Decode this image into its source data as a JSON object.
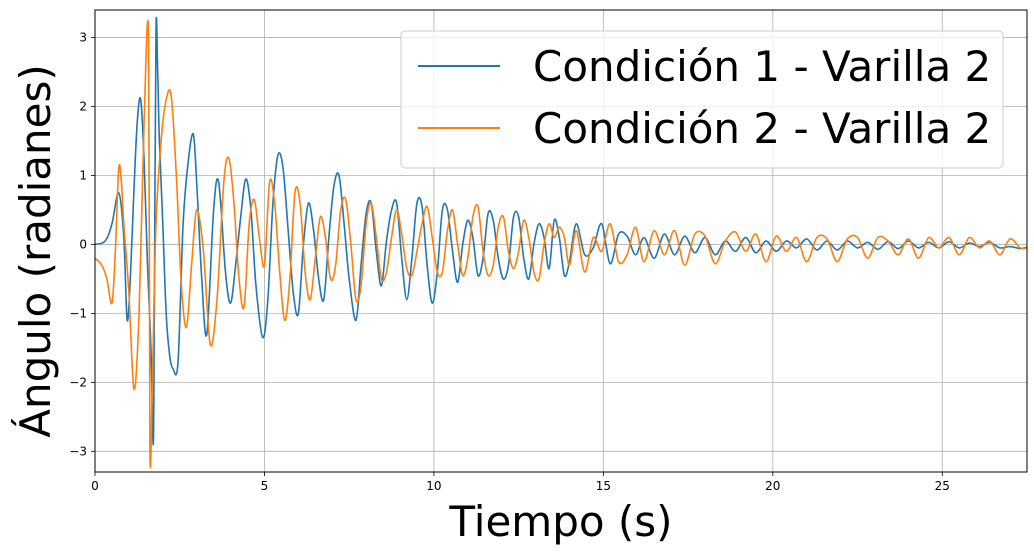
{
  "chart_data": {
    "type": "line",
    "title": "",
    "xlabel": "Tiempo (s)",
    "ylabel": "Ángulo (radianes)",
    "xlim": [
      0,
      27.5
    ],
    "ylim": [
      -3.3,
      3.4
    ],
    "xticks": [
      0,
      5,
      10,
      15,
      20,
      25
    ],
    "xtick_labels": [
      "0",
      "5",
      "10",
      "15",
      "20",
      "25"
    ],
    "yticks": [
      -3,
      -2,
      -1,
      0,
      1,
      2,
      3
    ],
    "ytick_labels": [
      "−3",
      "−2",
      "−1",
      "0",
      "1",
      "2",
      "3"
    ],
    "grid": true,
    "legend_position": "top-right",
    "series": [
      {
        "name": "Condición 1 - Varilla 2",
        "color": "#1f77b4",
        "x": [
          0,
          0.3,
          0.5,
          0.7,
          0.85,
          0.95,
          1.05,
          1.15,
          1.25,
          1.35,
          1.45,
          1.55,
          1.65,
          1.72,
          1.75,
          1.8,
          1.85,
          1.9,
          2.0,
          2.1,
          2.2,
          2.3,
          2.45,
          2.6,
          2.75,
          2.9,
          3.0,
          3.15,
          3.3,
          3.5,
          3.65,
          3.85,
          4.0,
          4.15,
          4.3,
          4.45,
          4.6,
          4.75,
          4.95,
          5.1,
          5.25,
          5.4,
          5.55,
          5.7,
          5.85,
          6.0,
          6.15,
          6.3,
          6.45,
          6.6,
          6.75,
          6.9,
          7.05,
          7.2,
          7.35,
          7.5,
          7.7,
          7.85,
          8.0,
          8.15,
          8.3,
          8.45,
          8.6,
          8.75,
          8.9,
          9.05,
          9.2,
          9.35,
          9.5,
          9.65,
          9.8,
          9.95,
          10.1,
          10.25,
          10.4,
          10.55,
          10.7,
          10.85,
          11.0,
          11.15,
          11.3,
          11.45,
          11.6,
          11.75,
          11.9,
          12.05,
          12.2,
          12.35,
          12.5,
          12.65,
          12.8,
          12.95,
          13.1,
          13.25,
          13.4,
          13.55,
          13.7,
          13.85,
          14.0,
          14.2,
          14.45,
          14.7,
          14.95,
          15.2,
          15.45,
          15.7,
          15.95,
          16.2,
          16.5,
          16.8,
          17.1,
          17.4,
          17.7,
          18.0,
          18.3,
          18.6,
          18.9,
          19.2,
          19.5,
          19.8,
          20.1,
          20.4,
          20.7,
          21.0,
          21.3,
          21.6,
          21.9,
          22.2,
          22.5,
          22.8,
          23.1,
          23.4,
          23.7,
          24.0,
          24.3,
          24.6,
          24.9,
          25.2,
          25.5,
          25.8,
          26.1,
          26.4,
          26.7,
          27.0,
          27.3,
          27.5
        ],
        "values": [
          0,
          0.05,
          0.3,
          0.75,
          0.1,
          -1.1,
          -0.4,
          0.8,
          1.8,
          2.1,
          1.2,
          -0.3,
          -1.5,
          -2.9,
          -1.0,
          3.1,
          2.5,
          1.5,
          0.3,
          -1.0,
          -1.6,
          -1.8,
          -1.7,
          0.3,
          1.2,
          1.6,
          0.9,
          -0.5,
          -1.3,
          0.5,
          0.9,
          -0.4,
          -0.85,
          -0.3,
          0.4,
          0.95,
          0.5,
          -0.6,
          -1.35,
          -0.8,
          0.6,
          1.3,
          1.1,
          0.2,
          -0.7,
          -1.0,
          0.0,
          0.6,
          0.2,
          -0.5,
          -0.8,
          0.1,
          0.85,
          1.0,
          0.3,
          -0.5,
          -1.1,
          -0.3,
          0.45,
          0.6,
          -0.1,
          -0.6,
          0.05,
          0.5,
          0.6,
          -0.2,
          -0.8,
          -0.2,
          0.6,
          0.55,
          -0.3,
          -0.85,
          -0.4,
          0.5,
          0.5,
          -0.1,
          -0.55,
          0.0,
          0.35,
          0.1,
          -0.45,
          -0.2,
          0.45,
          0.35,
          -0.2,
          -0.5,
          -0.3,
          0.4,
          0.4,
          -0.2,
          -0.5,
          0.0,
          0.3,
          0.1,
          -0.35,
          0.35,
          0.1,
          -0.45,
          -0.25,
          0.3,
          -0.15,
          -0.05,
          0.3,
          -0.28,
          0.15,
          0.12,
          -0.15,
          0.1,
          -0.2,
          0.15,
          -0.15,
          0.12,
          -0.12,
          0.1,
          -0.15,
          0.05,
          -0.1,
          0.1,
          -0.12,
          0.05,
          -0.1,
          0.05,
          -0.05,
          0.08,
          -0.08,
          0.05,
          -0.08,
          0.05,
          -0.05,
          0.03,
          -0.07,
          0.04,
          -0.06,
          0.05,
          -0.05,
          0.03,
          -0.05,
          0.04,
          -0.05,
          0.02,
          -0.03,
          0.03,
          -0.05,
          -0.03,
          -0.06,
          -0.04
        ]
      },
      {
        "name": "Condición 2 - Varilla 2",
        "color": "#ff7f0e",
        "x": [
          0,
          0.2,
          0.35,
          0.5,
          0.6,
          0.7,
          0.78,
          0.85,
          1.0,
          1.15,
          1.3,
          1.45,
          1.58,
          1.62,
          1.7,
          1.8,
          1.95,
          2.1,
          2.25,
          2.4,
          2.55,
          2.7,
          2.85,
          3.0,
          3.2,
          3.4,
          3.6,
          3.8,
          3.95,
          4.1,
          4.25,
          4.4,
          4.55,
          4.7,
          4.85,
          5.0,
          5.15,
          5.3,
          5.45,
          5.6,
          5.75,
          5.9,
          6.05,
          6.2,
          6.35,
          6.5,
          6.65,
          6.8,
          6.95,
          7.1,
          7.25,
          7.4,
          7.55,
          7.7,
          7.85,
          8.0,
          8.15,
          8.3,
          8.45,
          8.6,
          8.75,
          8.9,
          9.05,
          9.2,
          9.35,
          9.5,
          9.65,
          9.8,
          9.95,
          10.1,
          10.25,
          10.4,
          10.55,
          10.7,
          10.85,
          11.0,
          11.15,
          11.3,
          11.45,
          11.6,
          11.75,
          11.9,
          12.05,
          12.2,
          12.35,
          12.5,
          12.65,
          12.8,
          12.95,
          13.1,
          13.25,
          13.4,
          13.55,
          13.7,
          13.85,
          14.0,
          14.2,
          14.45,
          14.7,
          14.95,
          15.2,
          15.45,
          15.7,
          15.95,
          16.2,
          16.5,
          16.8,
          17.1,
          17.4,
          17.7,
          18.0,
          18.3,
          18.6,
          18.9,
          19.2,
          19.5,
          19.8,
          20.1,
          20.4,
          20.7,
          21.0,
          21.3,
          21.6,
          21.9,
          22.2,
          22.5,
          22.8,
          23.1,
          23.4,
          23.7,
          24.0,
          24.3,
          24.6,
          24.9,
          25.2,
          25.5,
          25.8,
          26.1,
          26.4,
          26.7,
          27.0,
          27.3,
          27.5
        ],
        "values": [
          -0.2,
          -0.3,
          -0.5,
          -0.85,
          -0.1,
          1.1,
          0.9,
          0.3,
          -0.7,
          -2.1,
          -1.0,
          1.8,
          3.0,
          -3.0,
          -1.8,
          0.3,
          1.5,
          2.1,
          2.15,
          1.0,
          -0.6,
          -1.2,
          -0.3,
          0.5,
          -0.1,
          -1.45,
          -0.8,
          0.9,
          1.25,
          0.6,
          -0.5,
          -0.9,
          0.3,
          0.65,
          0.1,
          -0.3,
          0.9,
          0.6,
          -0.4,
          -1.1,
          -0.5,
          0.75,
          0.6,
          -0.4,
          -0.8,
          -0.2,
          0.4,
          0.1,
          -0.5,
          -0.3,
          0.5,
          0.65,
          0.0,
          -0.8,
          -0.6,
          0.3,
          0.6,
          0.1,
          -0.5,
          -0.4,
          0.1,
          0.5,
          0.15,
          -0.35,
          -0.45,
          -0.1,
          0.3,
          0.55,
          0.1,
          -0.4,
          -0.4,
          0.2,
          0.5,
          0.0,
          -0.45,
          -0.2,
          0.4,
          0.55,
          -0.1,
          -0.45,
          -0.3,
          0.25,
          0.4,
          -0.1,
          -0.35,
          -0.1,
          0.35,
          0.1,
          -0.4,
          -0.5,
          0.0,
          0.3,
          0.1,
          0.25,
          0.1,
          -0.3,
          0.2,
          -0.4,
          0.1,
          -0.1,
          0.3,
          -0.25,
          -0.15,
          0.25,
          -0.25,
          0.2,
          -0.15,
          0.2,
          -0.3,
          0.15,
          0.12,
          -0.28,
          0.05,
          0.18,
          -0.1,
          0.15,
          -0.25,
          0.12,
          -0.1,
          0.1,
          -0.25,
          0.1,
          0.08,
          -0.25,
          0.08,
          0.1,
          -0.2,
          0.1,
          0.05,
          -0.15,
          0.08,
          -0.2,
          0.1,
          -0.05,
          0.1,
          -0.15,
          0.1,
          -0.05,
          0.05,
          -0.15,
          0.08,
          -0.05,
          -0.05
        ]
      }
    ]
  }
}
